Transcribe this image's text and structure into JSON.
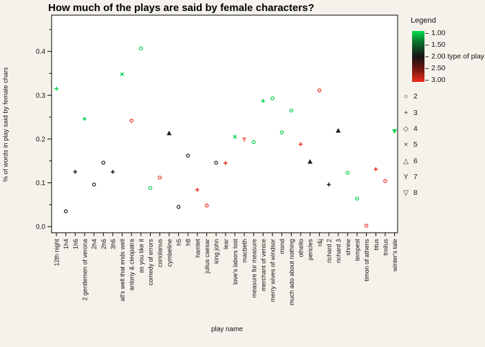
{
  "title": "How much of the plays are said by female characters?",
  "colors": {
    "background": "#f4f2ea",
    "plot_background": "#ffffff",
    "axis": "#000000",
    "green": "#00cf48",
    "black": "#1c1c1c",
    "red": "#ed2c22"
  },
  "chart_data": {
    "type": "scatter",
    "title": "How much of the plays are said by female characters?",
    "xlabel": "play name",
    "ylabel": "% of words in play said by female chars",
    "ylim": [
      0,
      0.45
    ],
    "y_major_ticks": [
      0.0,
      0.1,
      0.2,
      0.3,
      0.4
    ],
    "y_minor_ticks": [
      0.05,
      0.15,
      0.25,
      0.35,
      0.45
    ],
    "grid": false,
    "legend": {
      "title": "Legend",
      "color_scale": {
        "label": "type of play",
        "ticks": [
          "1.00",
          "1.50",
          "2.00",
          "2.50",
          "3.00"
        ],
        "label_on_tick": "2.00",
        "top_color": "#00dd4c",
        "mid_color": "#141414",
        "bottom_color": "#ed2c1c"
      },
      "shapes": [
        {
          "glyph": "○",
          "shape": "circle",
          "label": "2"
        },
        {
          "glyph": "+",
          "shape": "plus",
          "label": "3"
        },
        {
          "glyph": "◇",
          "shape": "diamond",
          "label": "4"
        },
        {
          "glyph": "×",
          "shape": "x",
          "label": "5"
        },
        {
          "glyph": "△",
          "shape": "triangle-up",
          "label": "6"
        },
        {
          "glyph": "Y",
          "shape": "y",
          "label": "7"
        },
        {
          "glyph": "▽",
          "shape": "triangle-down",
          "label": "8"
        }
      ]
    },
    "points": [
      {
        "play": "12th night",
        "value": 0.315,
        "type_of_play": 1,
        "shape": "plus"
      },
      {
        "play": "1h4",
        "value": 0.035,
        "type_of_play": 2,
        "shape": "circle"
      },
      {
        "play": "1h6",
        "value": 0.125,
        "type_of_play": 2,
        "shape": "plus"
      },
      {
        "play": "2 gentlemen of verona",
        "value": 0.246,
        "type_of_play": 1,
        "shape": "plus"
      },
      {
        "play": "2h4",
        "value": 0.096,
        "type_of_play": 2,
        "shape": "circle"
      },
      {
        "play": "2h6",
        "value": 0.146,
        "type_of_play": 2,
        "shape": "circle"
      },
      {
        "play": "3h6",
        "value": 0.125,
        "type_of_play": 2,
        "shape": "plus"
      },
      {
        "play": "all's well that ends well",
        "value": 0.348,
        "type_of_play": 1,
        "shape": "x"
      },
      {
        "play": "antony & cleopatra",
        "value": 0.242,
        "type_of_play": 3,
        "shape": "circle"
      },
      {
        "play": "as you like it",
        "value": 0.407,
        "type_of_play": 1,
        "shape": "circle"
      },
      {
        "play": "comedy of errors",
        "value": 0.088,
        "type_of_play": 1,
        "shape": "circle"
      },
      {
        "play": "coriolanus",
        "value": 0.112,
        "type_of_play": 3,
        "shape": "circle"
      },
      {
        "play": "cymbeline",
        "value": 0.213,
        "type_of_play": 2,
        "shape": "triangle-up"
      },
      {
        "play": "h5",
        "value": 0.045,
        "type_of_play": 2,
        "shape": "circle"
      },
      {
        "play": "h8",
        "value": 0.162,
        "type_of_play": 2,
        "shape": "circle"
      },
      {
        "play": "hamlet",
        "value": 0.084,
        "type_of_play": 3,
        "shape": "plus"
      },
      {
        "play": "julius caesar",
        "value": 0.048,
        "type_of_play": 3,
        "shape": "circle"
      },
      {
        "play": "king john",
        "value": 0.146,
        "type_of_play": 2,
        "shape": "circle"
      },
      {
        "play": "lear",
        "value": 0.145,
        "type_of_play": 3,
        "shape": "plus"
      },
      {
        "play": "love's labors lost",
        "value": 0.205,
        "type_of_play": 1,
        "shape": "x"
      },
      {
        "play": "macbeth",
        "value": 0.199,
        "type_of_play": 3,
        "shape": "y"
      },
      {
        "play": "measure for measure",
        "value": 0.193,
        "type_of_play": 1,
        "shape": "circle"
      },
      {
        "play": "merchant of venice",
        "value": 0.287,
        "type_of_play": 1,
        "shape": "plus"
      },
      {
        "play": "merry wives of windsor",
        "value": 0.293,
        "type_of_play": 1,
        "shape": "circle"
      },
      {
        "play": "msnd",
        "value": 0.215,
        "type_of_play": 1,
        "shape": "circle"
      },
      {
        "play": "much ado about nothing",
        "value": 0.265,
        "type_of_play": 1,
        "shape": "circle"
      },
      {
        "play": "othello",
        "value": 0.188,
        "type_of_play": 3,
        "shape": "plus"
      },
      {
        "play": "pericles",
        "value": 0.148,
        "type_of_play": 2,
        "shape": "triangle-up"
      },
      {
        "play": "r&j",
        "value": 0.311,
        "type_of_play": 3,
        "shape": "circle"
      },
      {
        "play": "richard 2",
        "value": 0.096,
        "type_of_play": 2,
        "shape": "plus"
      },
      {
        "play": "richard 3",
        "value": 0.219,
        "type_of_play": 2,
        "shape": "triangle-up"
      },
      {
        "play": "shrew",
        "value": 0.123,
        "type_of_play": 1,
        "shape": "circle"
      },
      {
        "play": "tempest",
        "value": 0.064,
        "type_of_play": 1,
        "shape": "circle"
      },
      {
        "play": "timon of athens",
        "value": 0.002,
        "type_of_play": 3,
        "shape": "circle"
      },
      {
        "play": "titus",
        "value": 0.131,
        "type_of_play": 3,
        "shape": "plus"
      },
      {
        "play": "troilus",
        "value": 0.104,
        "type_of_play": 3,
        "shape": "circle"
      },
      {
        "play": "winter's tale",
        "value": 0.218,
        "type_of_play": 1,
        "shape": "triangle-down"
      }
    ]
  }
}
